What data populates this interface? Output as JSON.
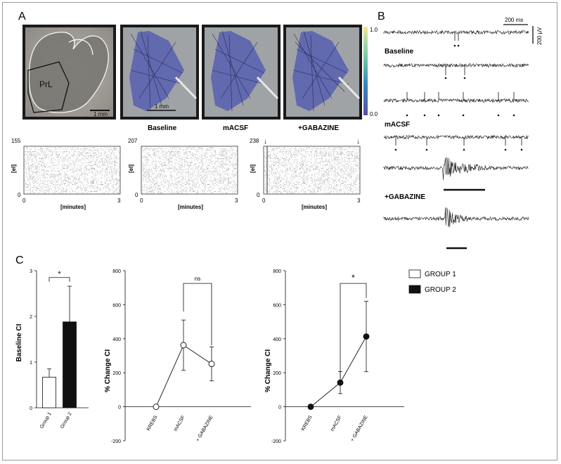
{
  "panels": {
    "A": "A",
    "B": "B",
    "C": "C"
  },
  "panel_a": {
    "images": [
      {
        "name": "slice",
        "label": "PrL",
        "scale": "1 mm"
      },
      {
        "name": "baseline",
        "scale": "1 mm",
        "caption": "Baseline"
      },
      {
        "name": "macsf",
        "caption": "mACSF"
      },
      {
        "name": "gabazine",
        "caption": "+GABAZINE"
      }
    ],
    "colorbar": {
      "max": "1.0",
      "min": "0.0"
    },
    "rasters": [
      {
        "count": "155",
        "ylabel": "[el]",
        "xlabel": "[minutes]",
        "x0": "0",
        "x1": "3",
        "y0": "0",
        "arrows": false
      },
      {
        "count": "207",
        "ylabel": "[el]",
        "xlabel": "[minutes]",
        "x0": "0",
        "x1": "3",
        "y0": "0",
        "arrows": false
      },
      {
        "count": "238",
        "ylabel": "[el]",
        "xlabel": "[minutes]",
        "x0": "0",
        "x1": "3",
        "y0": "0",
        "arrows": true
      }
    ]
  },
  "panel_b": {
    "time_scale": "200 ms",
    "amp_scale": "200 µV",
    "labels": [
      "Baseline",
      "mACSF",
      "+GABAZINE"
    ]
  },
  "legend": {
    "group1": "GROUP 1",
    "group2": "GROUP 2"
  },
  "chart_data": [
    {
      "type": "bar",
      "categories": [
        "Group 1",
        "Group 2"
      ],
      "values": [
        0.67,
        1.88
      ],
      "errors": [
        0.18,
        0.78
      ],
      "colors": [
        "#ffffff",
        "#111111"
      ],
      "ylabel": "Baseline CI",
      "ylim": [
        0,
        3
      ],
      "yticks": [
        "0",
        "1",
        "2",
        "3"
      ],
      "significance": "*"
    },
    {
      "type": "line",
      "categories": [
        "KREBS",
        "mACSF",
        "+ GABAZINE"
      ],
      "series": [
        {
          "name": "GROUP 1",
          "values": [
            0,
            362,
            252
          ],
          "errors": [
            0,
            148,
            100
          ],
          "marker": "open"
        }
      ],
      "ylabel": "% Change CI",
      "ylim": [
        -200,
        800
      ],
      "yticks": [
        "-200",
        "0",
        "200",
        "400",
        "600",
        "800"
      ],
      "significance": "ns"
    },
    {
      "type": "line",
      "categories": [
        "KREBS",
        "mACSF",
        "+ GABAZINE"
      ],
      "series": [
        {
          "name": "GROUP 2",
          "values": [
            0,
            142,
            413
          ],
          "errors": [
            0,
            65,
            207
          ],
          "marker": "filled"
        }
      ],
      "ylabel": "% Change CI",
      "ylim": [
        -200,
        800
      ],
      "yticks": [
        "-200",
        "0",
        "200",
        "400",
        "600",
        "800"
      ],
      "significance": "*"
    }
  ]
}
